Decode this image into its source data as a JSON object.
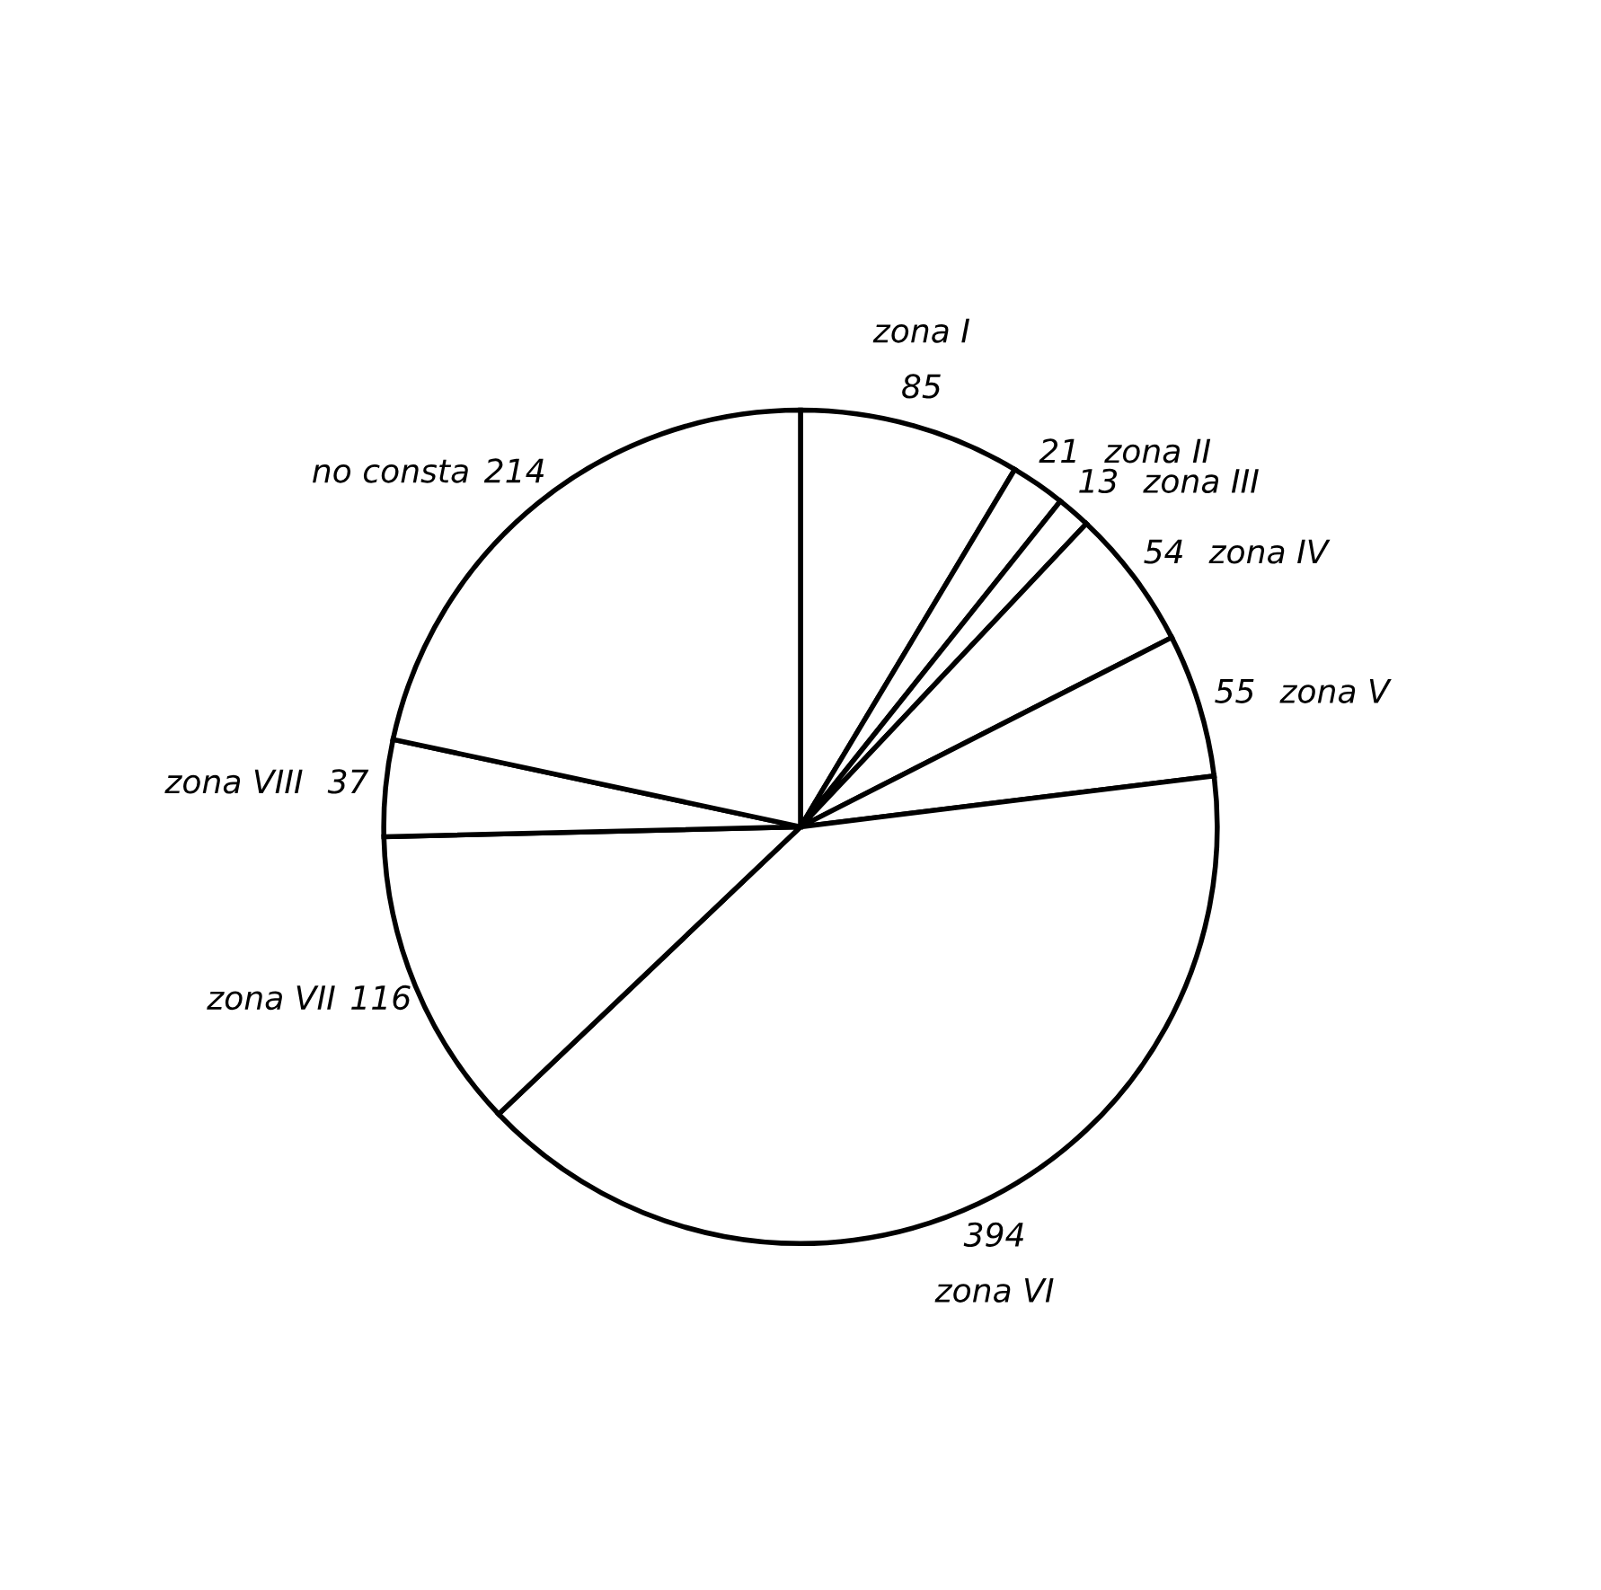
{
  "chart_data": {
    "type": "pie",
    "categories": [
      "zona I",
      "zona II",
      "zona III",
      "zona IV",
      "zona V",
      "zona VI",
      "zona VII",
      "zona VIII",
      "no consta"
    ],
    "values": [
      85,
      21,
      13,
      54,
      55,
      394,
      116,
      37,
      214
    ],
    "colors": [
      "#ffffff",
      "#ffffff",
      "#ffffff",
      "#ffffff",
      "#ffffff",
      "#ffffff",
      "#ffffff",
      "#ffffff",
      "#ffffff"
    ],
    "data_labels": true
  }
}
